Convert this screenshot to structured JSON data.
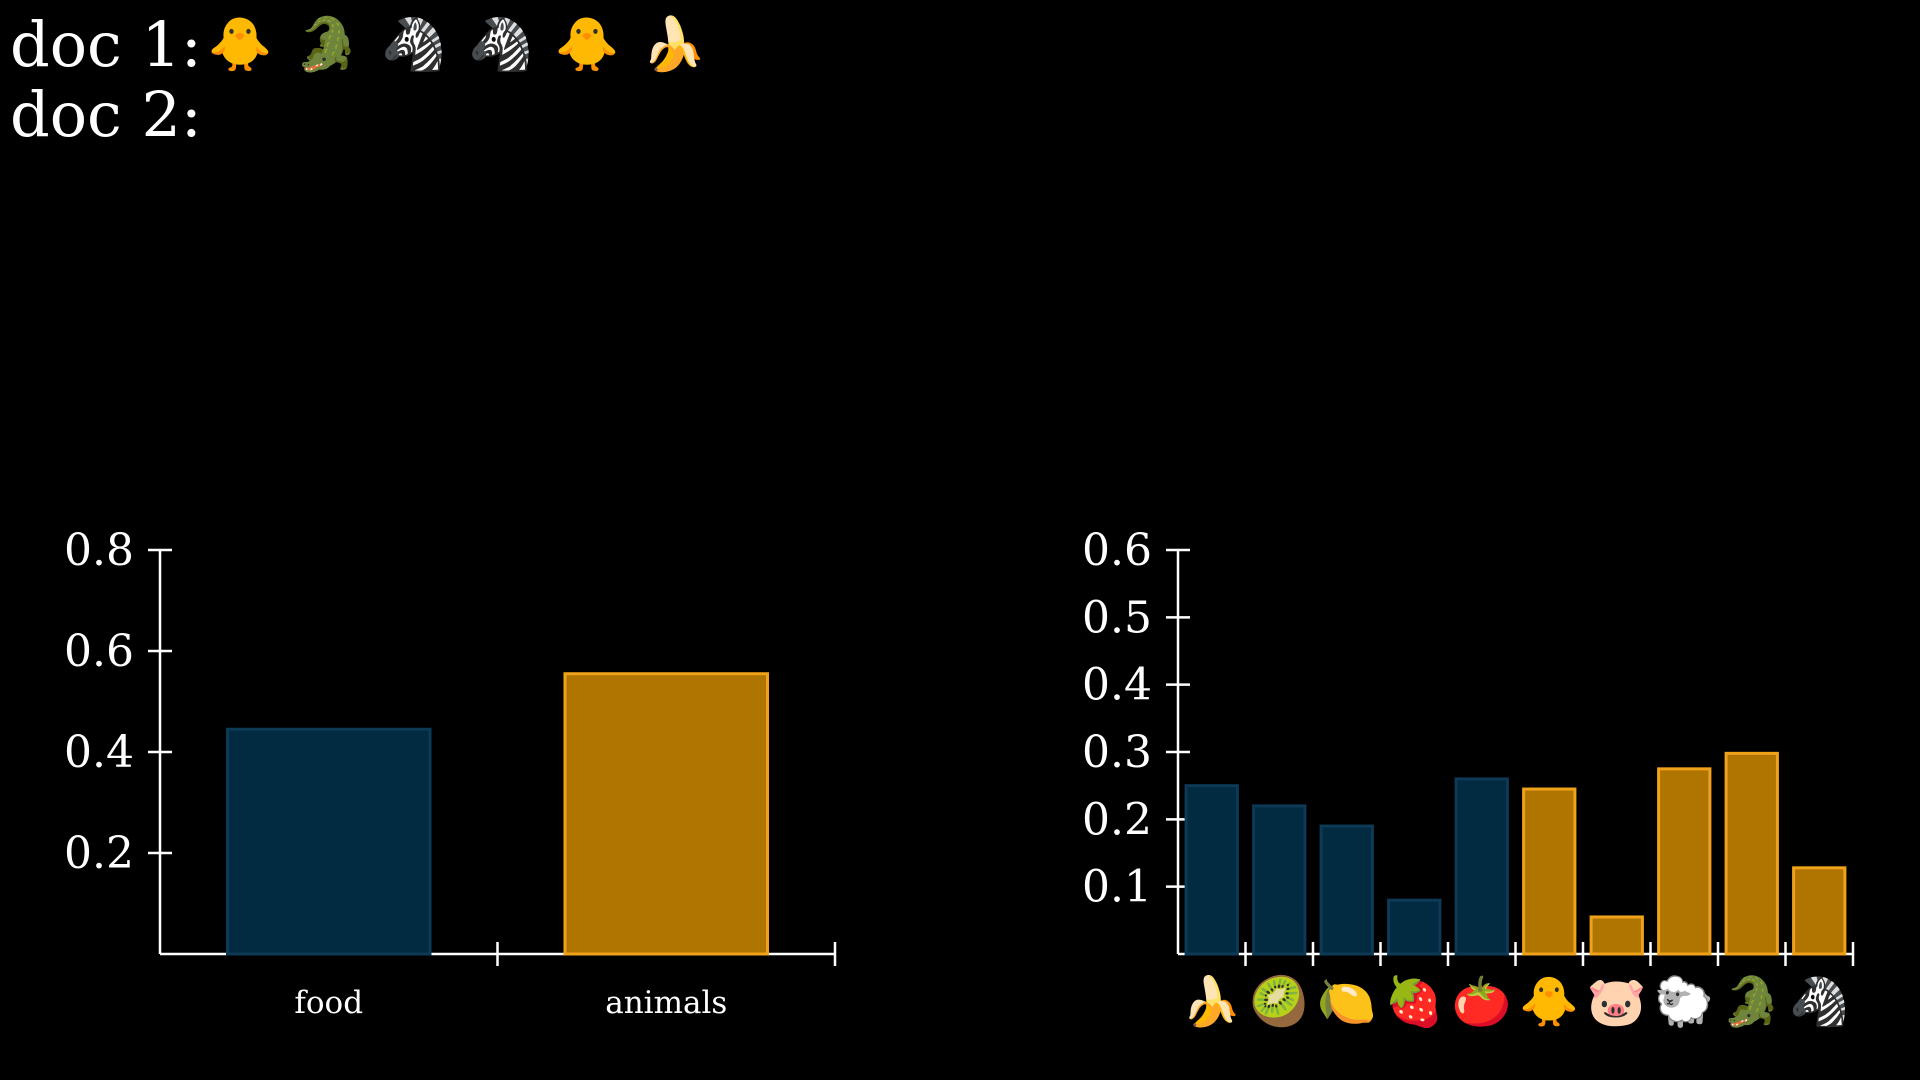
{
  "docs": [
    {
      "label": "doc 1:",
      "tokens": [
        "🐥",
        "🐊",
        "🦓",
        "🦓",
        "🐥",
        "🍌"
      ]
    },
    {
      "label": "doc 2:",
      "tokens": []
    }
  ],
  "colors": {
    "food_fill": "#022a40",
    "food_stroke": "#0d3a57",
    "animals_fill": "#b07400",
    "animals_stroke": "#f0a21a",
    "axis": "#ffffff"
  },
  "chart_data": [
    {
      "type": "bar",
      "categories": [
        "food",
        "animals"
      ],
      "values": [
        0.445,
        0.555
      ],
      "ylim": [
        0,
        0.8
      ],
      "yticks": [
        "0.2",
        "0.4",
        "0.6",
        "0.8"
      ],
      "ytick_values": [
        0.2,
        0.4,
        0.6,
        0.8
      ]
    },
    {
      "type": "bar",
      "categories": [
        "🍌",
        "🥝",
        "🍋",
        "🍓",
        "🍅",
        "🐥",
        "🐷",
        "🐑",
        "🐊",
        "🦓"
      ],
      "groups": [
        "food",
        "food",
        "food",
        "food",
        "food",
        "animals",
        "animals",
        "animals",
        "animals",
        "animals"
      ],
      "values": [
        0.25,
        0.22,
        0.19,
        0.08,
        0.26,
        0.245,
        0.055,
        0.275,
        0.298,
        0.128
      ],
      "ylim": [
        0,
        0.6
      ],
      "yticks": [
        "0.1",
        "0.2",
        "0.3",
        "0.4",
        "0.5",
        "0.6"
      ],
      "ytick_values": [
        0.1,
        0.2,
        0.3,
        0.4,
        0.5,
        0.6
      ]
    }
  ]
}
